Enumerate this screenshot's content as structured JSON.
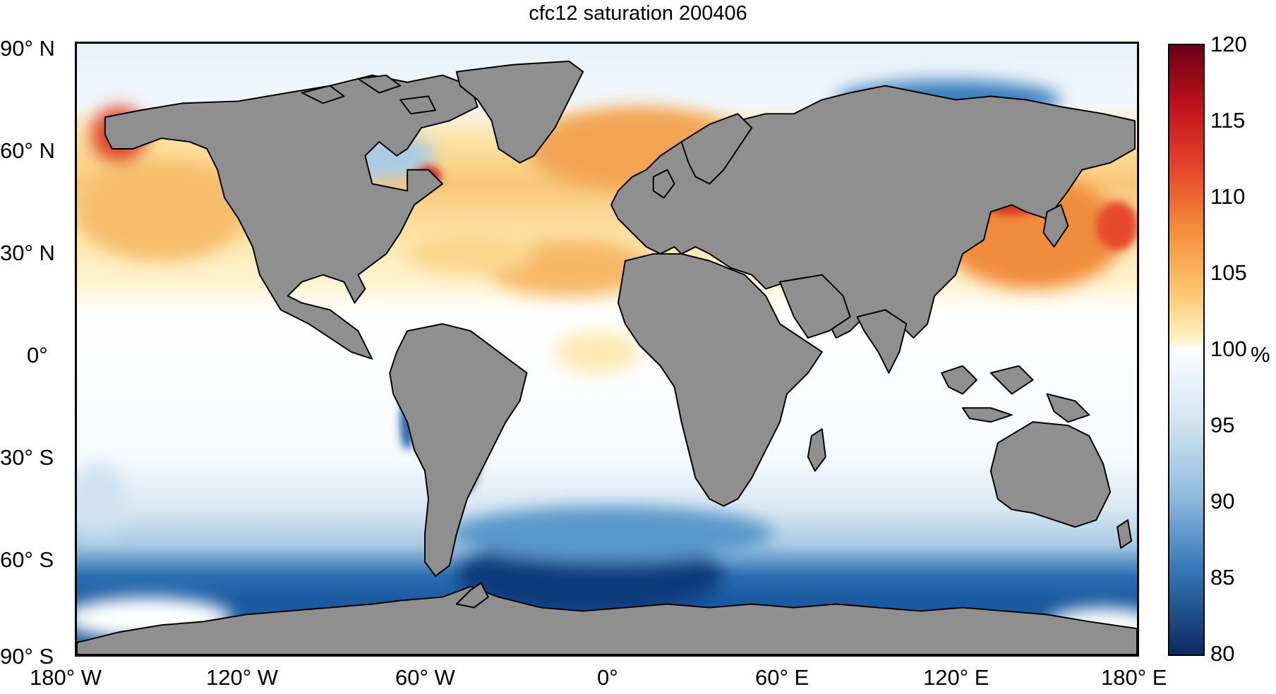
{
  "title": "cfc12 saturation 200406",
  "lat_labels": [
    "90° N",
    "60° N",
    "30° N",
    "0°",
    "30° S",
    "60° S",
    "90° S"
  ],
  "lon_labels": [
    "180° W",
    "120° W",
    "60° W",
    "0°",
    "60° E",
    "120° E",
    "180° E"
  ],
  "colorbar": {
    "unit": "%",
    "ticks": [
      "120",
      "115",
      "110",
      "105",
      "100",
      "95",
      "90",
      "85",
      "80"
    ],
    "min": 80,
    "max": 120
  },
  "colors": {
    "land": "#8f8f8f",
    "coastline": "#000000",
    "neutral": "#ffffff",
    "supersaturated": "#f0923a",
    "strong_supersaturated": "#c81a1c",
    "undersaturated": "#1a5fa8",
    "strong_undersaturated": "#0b2f6b"
  },
  "chart_data": {
    "type": "heatmap",
    "title": "cfc12 saturation 200406",
    "projection": "equirectangular",
    "x_axis": {
      "ticks": [
        "180° W",
        "120° W",
        "60° W",
        "0°",
        "60° E",
        "120° E",
        "180° E"
      ],
      "range": [
        -180,
        180
      ]
    },
    "y_axis": {
      "ticks": [
        "90° N",
        "60° N",
        "30° N",
        "0°",
        "30° S",
        "60° S",
        "90° S"
      ],
      "range": [
        -90,
        90
      ]
    },
    "colorbar": {
      "label": "%",
      "range": [
        80,
        120
      ],
      "ticks": [
        80,
        85,
        90,
        95,
        100,
        105,
        110,
        115,
        120
      ]
    }
  }
}
